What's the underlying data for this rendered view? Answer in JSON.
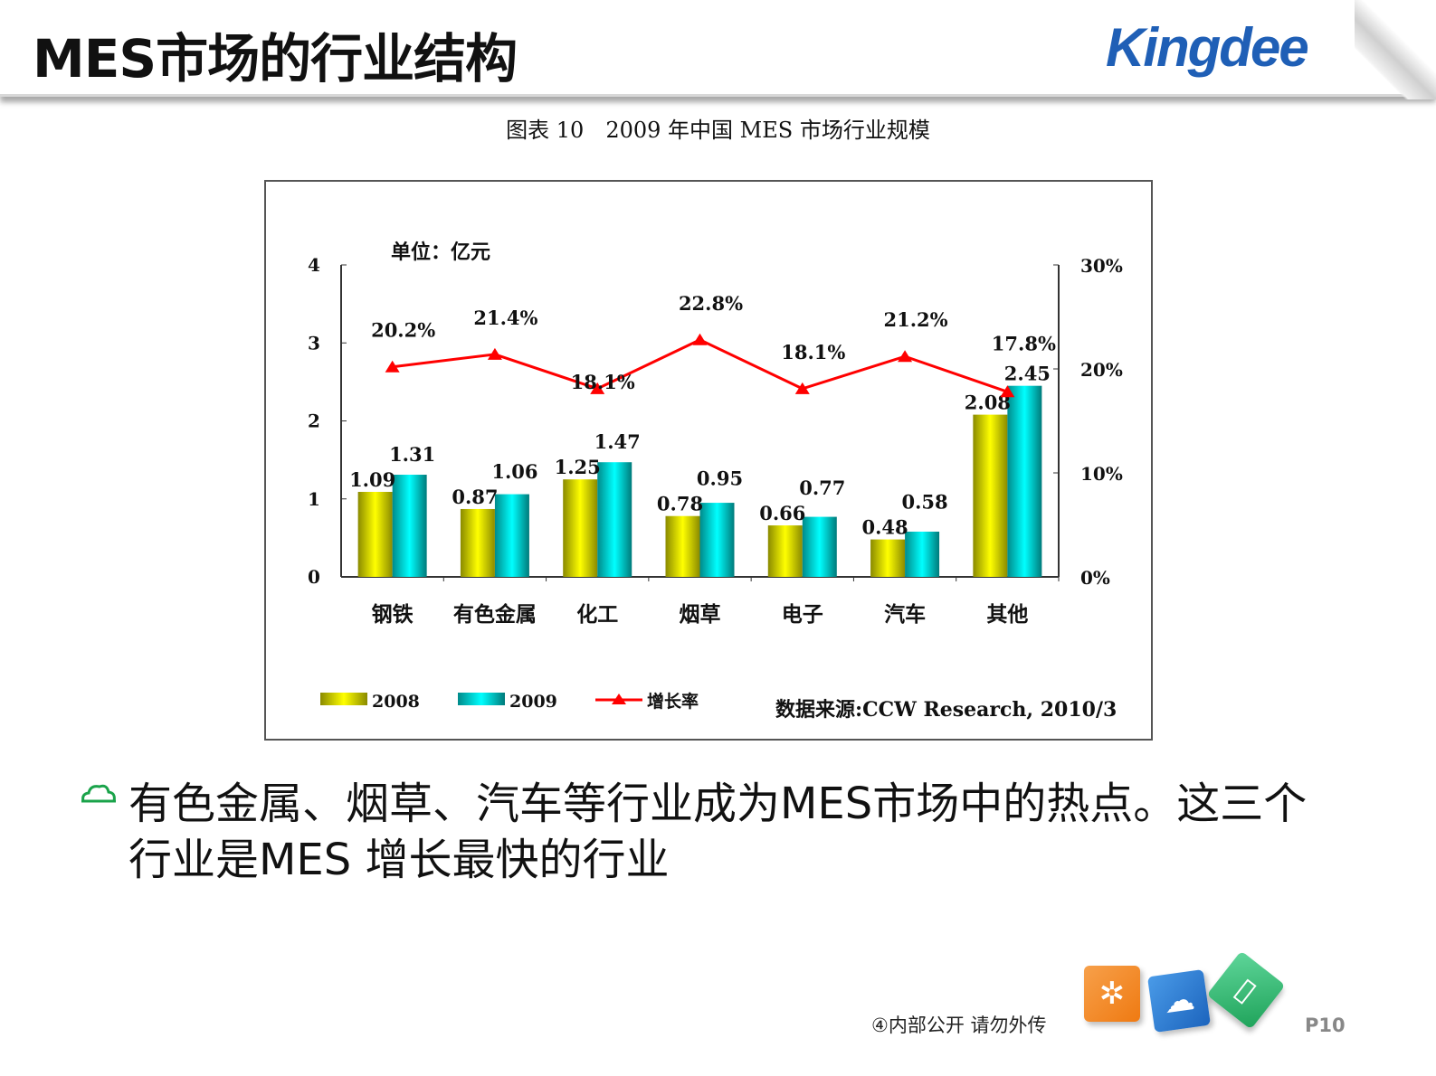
{
  "header": {
    "title": "MES市场的行业结构",
    "logo_text": "Kingdee"
  },
  "caption": "图表 10　2009 年中国 MES 市场行业规模",
  "chart_data": {
    "type": "bar+line",
    "unit_label": "单位：亿元",
    "categories": [
      "钢铁",
      "有色金属",
      "化工",
      "烟草",
      "电子",
      "汽车",
      "其他"
    ],
    "series": [
      {
        "name": "2008",
        "type": "bar",
        "axis": "left",
        "color": "#e0e000",
        "values": [
          1.09,
          0.87,
          1.25,
          0.78,
          0.66,
          0.48,
          2.08
        ]
      },
      {
        "name": "2009",
        "type": "bar",
        "axis": "left",
        "color": "#00d8d8",
        "values": [
          1.31,
          1.06,
          1.47,
          0.95,
          0.77,
          0.58,
          2.45
        ]
      },
      {
        "name": "增长率",
        "type": "line",
        "axis": "right",
        "color": "#ff0000",
        "values": [
          20.2,
          21.4,
          18.1,
          22.8,
          18.1,
          21.2,
          17.8
        ]
      }
    ],
    "bar_labels_2008": [
      "1.09",
      "0.87",
      "1.25",
      "0.78",
      "0.66",
      "0.48",
      "2.08"
    ],
    "bar_labels_2009": [
      "1.31",
      "1.06",
      "1.47",
      "0.95",
      "0.77",
      "0.58",
      "2.45"
    ],
    "line_labels": [
      "20.2%",
      "21.4%",
      "18.1%",
      "22.8%",
      "18.1%",
      "21.2%",
      "17.8%"
    ],
    "left_axis": {
      "ylim": [
        0,
        4
      ],
      "ticks": [
        "0",
        "1",
        "2",
        "3",
        "4"
      ]
    },
    "right_axis": {
      "ylim": [
        0,
        30
      ],
      "ticks": [
        "0%",
        "10%",
        "20%",
        "30%"
      ]
    },
    "grid": false,
    "legend_placement": "bottom",
    "source": "数据来源:CCW Research, 2010/3"
  },
  "body": {
    "bullet_icon": "cloud-outline-icon",
    "text": "有色金属、烟草、汽车等行业成为MES市场中的热点。这三个行业是MES 增长最快的行业"
  },
  "footer": {
    "note": "④内部公开 请勿外传",
    "page": "P10",
    "icons": [
      "network-icon",
      "cloud-icon",
      "tablet-icon"
    ]
  }
}
